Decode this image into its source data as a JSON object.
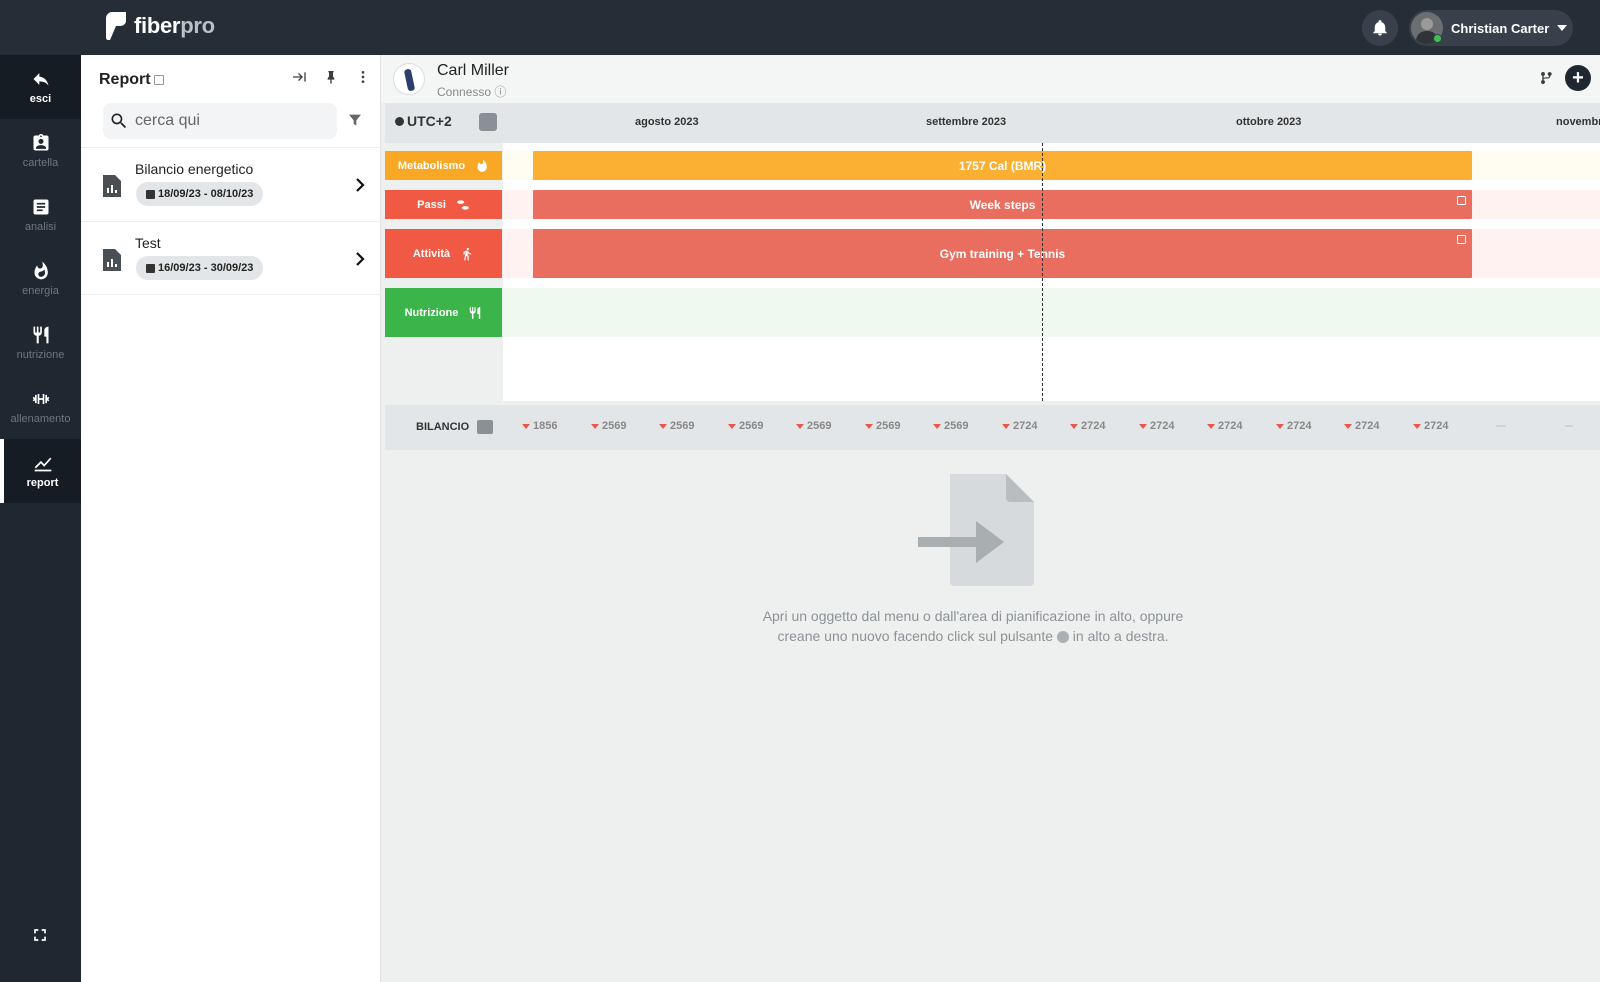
{
  "brand": {
    "name_bold": "fiber",
    "name_light": "pro"
  },
  "user": {
    "name": "Christian Carter"
  },
  "sidebar": {
    "items": [
      {
        "label": "esci",
        "icon": "back-arrow-icon"
      },
      {
        "label": "cartella",
        "icon": "clipboard-icon"
      },
      {
        "label": "analisi",
        "icon": "document-icon"
      },
      {
        "label": "energia",
        "icon": "flame-icon"
      },
      {
        "label": "nutrizione",
        "icon": "fork-knife-icon"
      },
      {
        "label": "allenamento",
        "icon": "dumbbell-icon"
      },
      {
        "label": "report",
        "icon": "chart-line-icon"
      }
    ]
  },
  "panel": {
    "title": "Report",
    "search_placeholder": "cerca qui",
    "reports": [
      {
        "title": "Bilancio energetico",
        "dates": "18/09/23 - 08/10/23"
      },
      {
        "title": "Test",
        "dates": "16/09/23 - 30/09/23"
      }
    ]
  },
  "patient": {
    "name": "Carl Miller",
    "status": "Connesso ⓘ"
  },
  "timeline": {
    "timezone": "UTC+2",
    "months": [
      "agosto 2023",
      "settembre 2023",
      "ottobre 2023",
      "novembr"
    ],
    "rows": [
      {
        "label": "Metabolismo",
        "bar": "1757 Cal (BMR)",
        "color": "#f9a825",
        "bar_color": "#fbb034"
      },
      {
        "label": "Passi",
        "bar": "Week steps",
        "color": "#f05a44",
        "bar_color": "#ea6e5f"
      },
      {
        "label": "Attività",
        "bar": "Gym training + Tennis",
        "color": "#f05a44",
        "bar_color": "#ea6e5f"
      },
      {
        "label": "Nutrizione",
        "bar": "",
        "color": "#3bb54a"
      }
    ]
  },
  "bilancio": {
    "label": "BILANCIO",
    "values": [
      "1856",
      "2569",
      "2569",
      "2569",
      "2569",
      "2569",
      "2569",
      "2724",
      "2724",
      "2724",
      "2724",
      "2724",
      "2724",
      "2724"
    ]
  },
  "empty_state": {
    "line1": "Apri un oggetto dal menu o dall'area di pianificazione in alto, oppure",
    "line2a": "creane uno nuovo facendo click sul pulsante",
    "line2b": "in alto a destra."
  }
}
